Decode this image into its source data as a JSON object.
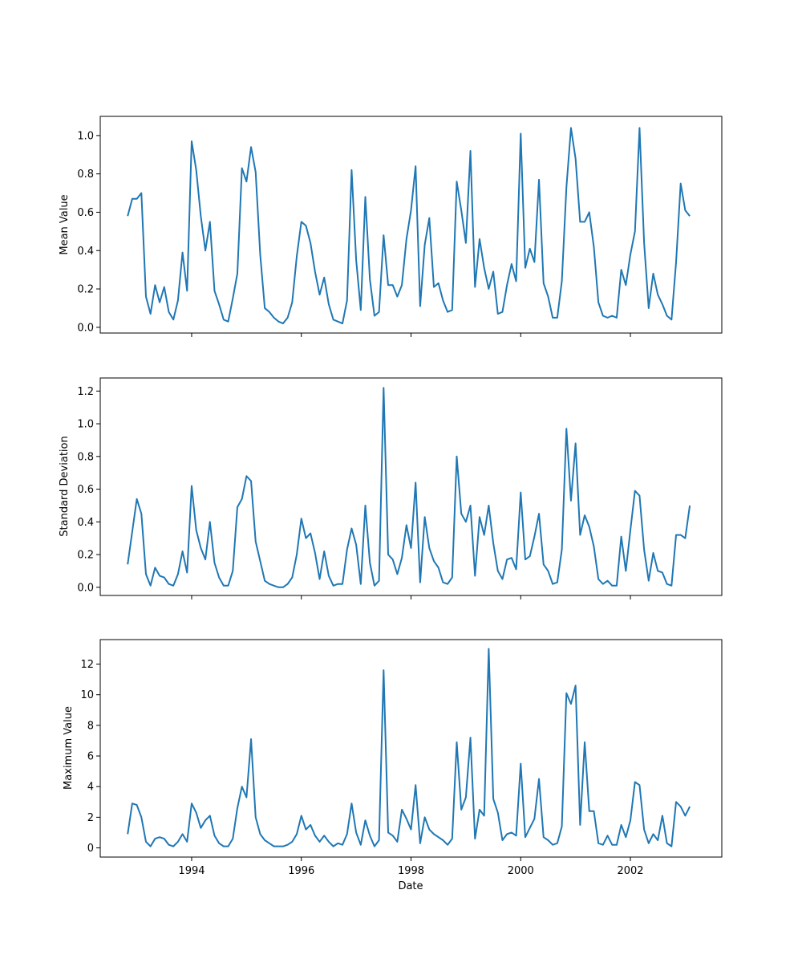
{
  "chart_data": {
    "type": "line",
    "xlabel": "Date",
    "x": [
      "1992-11",
      "1992-12",
      "1993-01",
      "1993-02",
      "1993-03",
      "1993-04",
      "1993-05",
      "1993-06",
      "1993-07",
      "1993-08",
      "1993-09",
      "1993-10",
      "1993-11",
      "1993-12",
      "1994-01",
      "1994-02",
      "1994-03",
      "1994-04",
      "1994-05",
      "1994-06",
      "1994-07",
      "1994-08",
      "1994-09",
      "1994-10",
      "1994-11",
      "1994-12",
      "1995-01",
      "1995-02",
      "1995-03",
      "1995-04",
      "1995-05",
      "1995-06",
      "1995-07",
      "1995-08",
      "1995-09",
      "1995-10",
      "1995-11",
      "1995-12",
      "1996-01",
      "1996-02",
      "1996-03",
      "1996-04",
      "1996-05",
      "1996-06",
      "1996-07",
      "1996-08",
      "1996-09",
      "1996-10",
      "1996-11",
      "1996-12",
      "1997-01",
      "1997-02",
      "1997-03",
      "1997-04",
      "1997-05",
      "1997-06",
      "1997-07",
      "1997-08",
      "1997-09",
      "1997-10",
      "1997-11",
      "1997-12",
      "1998-01",
      "1998-02",
      "1998-03",
      "1998-04",
      "1998-05",
      "1998-06",
      "1998-07",
      "1998-08",
      "1998-09",
      "1998-10",
      "1998-11",
      "1998-12",
      "1999-01",
      "1999-02",
      "1999-03",
      "1999-04",
      "1999-05",
      "1999-06",
      "1999-07",
      "1999-08",
      "1999-09",
      "1999-10",
      "1999-11",
      "1999-12",
      "2000-01",
      "2000-02",
      "2000-03",
      "2000-04",
      "2000-05",
      "2000-06",
      "2000-07",
      "2000-08",
      "2000-09",
      "2000-10",
      "2000-11",
      "2000-12",
      "2001-01",
      "2001-02",
      "2001-03",
      "2001-04",
      "2001-05",
      "2001-06",
      "2001-07",
      "2001-08",
      "2001-09",
      "2001-10",
      "2001-11",
      "2001-12",
      "2002-01",
      "2002-02",
      "2002-03",
      "2002-04",
      "2002-05",
      "2002-06",
      "2002-07",
      "2002-08",
      "2002-09",
      "2002-10",
      "2002-11",
      "2002-12",
      "2003-01",
      "2003-02"
    ],
    "x_ticks": [
      "1994",
      "1996",
      "1998",
      "2000",
      "2002"
    ],
    "xlim": [
      "1992-05",
      "2003-09"
    ],
    "panels": [
      {
        "ylabel": "Mean Value",
        "ylim": [
          -0.03,
          1.1
        ],
        "yticks": [
          "0.0",
          "0.2",
          "0.4",
          "0.6",
          "0.8",
          "1.0"
        ],
        "values": [
          0.58,
          0.67,
          0.67,
          0.7,
          0.16,
          0.07,
          0.22,
          0.13,
          0.21,
          0.08,
          0.04,
          0.14,
          0.39,
          0.19,
          0.97,
          0.82,
          0.58,
          0.4,
          0.55,
          0.19,
          0.12,
          0.04,
          0.03,
          0.15,
          0.28,
          0.83,
          0.76,
          0.94,
          0.81,
          0.38,
          0.1,
          0.08,
          0.05,
          0.03,
          0.02,
          0.05,
          0.13,
          0.37,
          0.55,
          0.53,
          0.44,
          0.29,
          0.17,
          0.26,
          0.12,
          0.04,
          0.03,
          0.02,
          0.14,
          0.82,
          0.35,
          0.09,
          0.68,
          0.25,
          0.06,
          0.08,
          0.48,
          0.22,
          0.22,
          0.16,
          0.22,
          0.46,
          0.61,
          0.84,
          0.11,
          0.43,
          0.57,
          0.21,
          0.23,
          0.14,
          0.08,
          0.09,
          0.76,
          0.61,
          0.44,
          0.92,
          0.21,
          0.46,
          0.31,
          0.2,
          0.29,
          0.07,
          0.08,
          0.22,
          0.33,
          0.24,
          1.01,
          0.31,
          0.41,
          0.34,
          0.77,
          0.23,
          0.16,
          0.05,
          0.05,
          0.24,
          0.73,
          1.04,
          0.88,
          0.55,
          0.55,
          0.6,
          0.42,
          0.13,
          0.06,
          0.05,
          0.06,
          0.05,
          0.3,
          0.22,
          0.38,
          0.5,
          1.04,
          0.44,
          0.1,
          0.28,
          0.17,
          0.12,
          0.06,
          0.04,
          0.34,
          0.75,
          0.61,
          0.58
        ]
      },
      {
        "ylabel": "Standard Deviation",
        "ylim": [
          -0.05,
          1.28
        ],
        "yticks": [
          "0.0",
          "0.2",
          "0.4",
          "0.6",
          "0.8",
          "1.0",
          "1.2"
        ],
        "values": [
          0.14,
          0.34,
          0.54,
          0.45,
          0.08,
          0.01,
          0.12,
          0.07,
          0.06,
          0.02,
          0.01,
          0.08,
          0.22,
          0.09,
          0.62,
          0.35,
          0.24,
          0.17,
          0.4,
          0.15,
          0.06,
          0.01,
          0.01,
          0.1,
          0.49,
          0.54,
          0.68,
          0.65,
          0.28,
          0.16,
          0.04,
          0.02,
          0.01,
          0.0,
          0.0,
          0.02,
          0.06,
          0.2,
          0.42,
          0.3,
          0.33,
          0.21,
          0.05,
          0.22,
          0.07,
          0.01,
          0.02,
          0.02,
          0.23,
          0.36,
          0.26,
          0.02,
          0.5,
          0.15,
          0.01,
          0.04,
          1.22,
          0.2,
          0.17,
          0.08,
          0.18,
          0.38,
          0.24,
          0.64,
          0.03,
          0.43,
          0.24,
          0.16,
          0.12,
          0.03,
          0.02,
          0.06,
          0.8,
          0.45,
          0.4,
          0.5,
          0.07,
          0.43,
          0.32,
          0.5,
          0.27,
          0.1,
          0.05,
          0.17,
          0.18,
          0.11,
          0.58,
          0.17,
          0.19,
          0.31,
          0.45,
          0.14,
          0.1,
          0.02,
          0.03,
          0.23,
          0.97,
          0.53,
          0.88,
          0.32,
          0.44,
          0.37,
          0.25,
          0.05,
          0.02,
          0.04,
          0.01,
          0.01,
          0.31,
          0.1,
          0.35,
          0.59,
          0.56,
          0.23,
          0.04,
          0.21,
          0.1,
          0.09,
          0.02,
          0.01,
          0.32,
          0.32,
          0.3,
          0.5
        ]
      },
      {
        "ylabel": "Maximum Value",
        "ylim": [
          -0.6,
          13.6
        ],
        "yticks": [
          "0",
          "2",
          "4",
          "6",
          "8",
          "10",
          "12"
        ],
        "values": [
          0.9,
          2.9,
          2.8,
          2.0,
          0.4,
          0.1,
          0.6,
          0.7,
          0.6,
          0.2,
          0.1,
          0.4,
          0.9,
          0.4,
          2.9,
          2.3,
          1.3,
          1.8,
          2.1,
          0.8,
          0.3,
          0.1,
          0.1,
          0.6,
          2.6,
          4.0,
          3.3,
          7.1,
          2.0,
          0.9,
          0.5,
          0.3,
          0.1,
          0.1,
          0.1,
          0.2,
          0.4,
          0.9,
          2.1,
          1.2,
          1.5,
          0.8,
          0.4,
          0.8,
          0.4,
          0.1,
          0.3,
          0.2,
          0.9,
          2.9,
          1.0,
          0.2,
          1.8,
          0.8,
          0.1,
          0.5,
          11.6,
          1.0,
          0.8,
          0.4,
          2.5,
          1.9,
          1.2,
          4.1,
          0.3,
          2.0,
          1.2,
          0.9,
          0.7,
          0.5,
          0.2,
          0.6,
          6.9,
          2.5,
          3.3,
          7.2,
          0.6,
          2.5,
          2.1,
          13.0,
          3.2,
          2.3,
          0.5,
          0.9,
          1.0,
          0.8,
          5.5,
          0.7,
          1.3,
          1.9,
          4.5,
          0.7,
          0.5,
          0.2,
          0.3,
          1.4,
          10.1,
          9.4,
          10.6,
          1.5,
          6.9,
          2.4,
          2.4,
          0.3,
          0.2,
          0.8,
          0.2,
          0.2,
          1.5,
          0.7,
          1.8,
          4.3,
          4.1,
          1.2,
          0.3,
          0.9,
          0.5,
          2.1,
          0.3,
          0.1,
          3.0,
          2.7,
          2.1,
          2.7
        ]
      }
    ],
    "colors": {
      "series": "#1f77b4"
    },
    "grid": false
  }
}
